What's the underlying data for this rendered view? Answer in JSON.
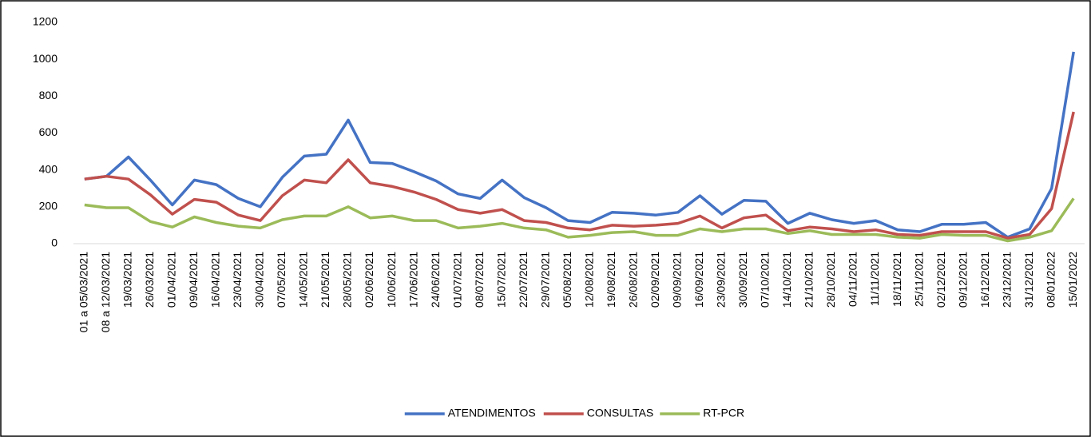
{
  "chart_data": {
    "type": "line",
    "categories": [
      "01 a 05/03/2021",
      "08 a 12/03/2021",
      "19/03/2021",
      "26/03/2021",
      "01/04/2021",
      "09/04/2021",
      "16/04/2021",
      "23/04/2021",
      "30/04/2021",
      "07/05/2021",
      "14/05/2021",
      "21/05/2021",
      "28/05/2021",
      "02/06/2021",
      "10/06/2021",
      "17/06/2021",
      "24/06/2021",
      "01/07/2021",
      "08/07/2021",
      "15/07/2021",
      "22/07/2021",
      "29/07/2021",
      "05/08/2021",
      "12/08/2021",
      "19/08/2021",
      "26/08/2021",
      "02/09/2021",
      "09/09/2021",
      "16/09/2021",
      "23/09/2021",
      "30/09/2021",
      "07/10/2021",
      "14/10/2021",
      "21/10/2021",
      "28/10/2021",
      "04/11/2021",
      "11/11/2021",
      "18/11/2021",
      "25/11/2021",
      "02/12/2021",
      "09/12/2021",
      "16/12/2021",
      "23/12/2021",
      "31/12/2021",
      "08/01/2022",
      "15/01/2022"
    ],
    "series": [
      {
        "name": "ATENDIMENTOS",
        "color": "#4472c4",
        "values": [
          350,
          365,
          470,
          345,
          210,
          345,
          320,
          245,
          200,
          360,
          475,
          485,
          670,
          440,
          435,
          390,
          340,
          270,
          245,
          345,
          250,
          195,
          125,
          115,
          170,
          165,
          155,
          170,
          260,
          160,
          235,
          230,
          110,
          165,
          130,
          110,
          125,
          75,
          65,
          105,
          105,
          115,
          35,
          80,
          300,
          1040
        ]
      },
      {
        "name": "CONSULTAS",
        "color": "#c0504d",
        "values": [
          350,
          365,
          350,
          265,
          160,
          240,
          225,
          155,
          125,
          260,
          345,
          330,
          455,
          330,
          310,
          280,
          240,
          185,
          165,
          185,
          125,
          115,
          85,
          75,
          100,
          95,
          100,
          110,
          150,
          85,
          140,
          155,
          70,
          90,
          80,
          65,
          75,
          50,
          45,
          65,
          65,
          65,
          30,
          50,
          190,
          715
        ]
      },
      {
        "name": "RT-PCR",
        "color": "#9bbb59",
        "values": [
          210,
          195,
          195,
          120,
          90,
          145,
          115,
          95,
          85,
          130,
          150,
          150,
          200,
          140,
          150,
          125,
          125,
          85,
          95,
          110,
          85,
          75,
          35,
          45,
          60,
          65,
          45,
          45,
          80,
          65,
          80,
          80,
          55,
          70,
          50,
          50,
          50,
          35,
          30,
          50,
          45,
          45,
          15,
          35,
          70,
          245
        ]
      }
    ],
    "ylim": [
      0,
      1200
    ],
    "yticks": [
      0,
      200,
      400,
      600,
      800,
      1000,
      1200
    ],
    "grid": false,
    "legend": "bottom"
  }
}
